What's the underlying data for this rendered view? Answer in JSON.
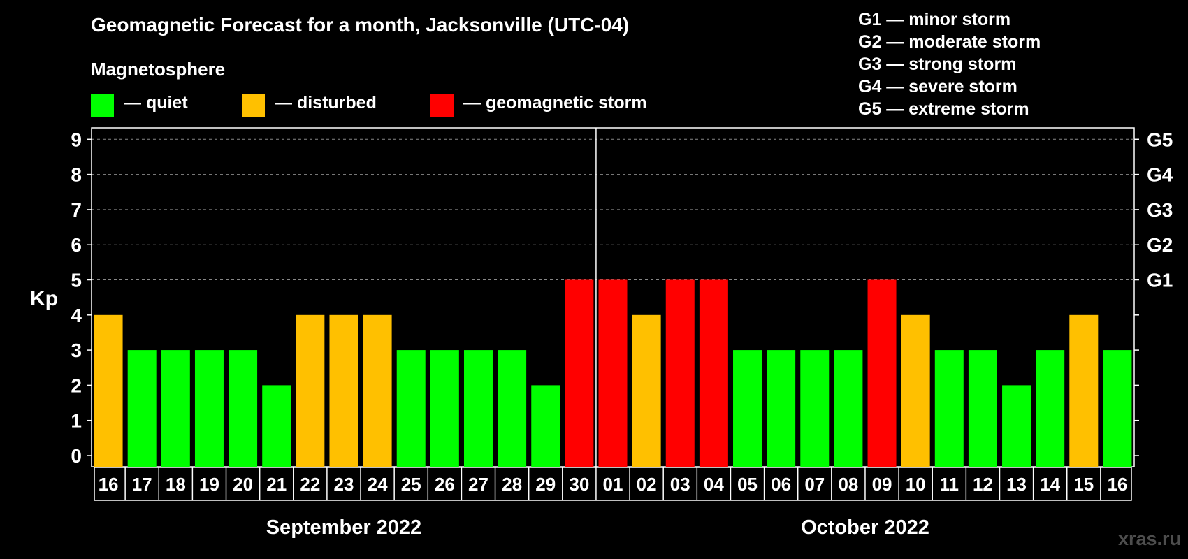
{
  "chart_data": {
    "type": "bar",
    "title": "Geomagnetic Forecast for a month, Jacksonville (UTC-04)",
    "legend_heading": "Magnetosphere",
    "legend": [
      {
        "label": "— quiet",
        "color": "#00ff00"
      },
      {
        "label": "— disturbed",
        "color": "#ffc000"
      },
      {
        "label": "— geomagnetic storm",
        "color": "#ff0000"
      }
    ],
    "storm_scale": [
      "G1 — minor storm",
      "G2 — moderate storm",
      "G3 — strong storm",
      "G4 — severe storm",
      "G5 — extreme storm"
    ],
    "ylabel": "Kp",
    "ylim": [
      0,
      9
    ],
    "yticks": [
      "0",
      "1",
      "2",
      "3",
      "4",
      "5",
      "6",
      "7",
      "8",
      "9"
    ],
    "right_ticks": [
      {
        "kp": 5,
        "label": "G1"
      },
      {
        "kp": 6,
        "label": "G2"
      },
      {
        "kp": 7,
        "label": "G3"
      },
      {
        "kp": 8,
        "label": "G4"
      },
      {
        "kp": 9,
        "label": "G5"
      }
    ],
    "categories": [
      "16",
      "17",
      "18",
      "19",
      "20",
      "21",
      "22",
      "23",
      "24",
      "25",
      "26",
      "27",
      "28",
      "29",
      "30",
      "01",
      "02",
      "03",
      "04",
      "05",
      "06",
      "07",
      "08",
      "09",
      "10",
      "11",
      "12",
      "13",
      "14",
      "15",
      "16"
    ],
    "values": [
      4,
      3,
      3,
      3,
      3,
      2,
      4,
      4,
      4,
      3,
      3,
      3,
      3,
      2,
      5,
      5,
      4,
      5,
      5,
      3,
      3,
      3,
      3,
      5,
      4,
      3,
      3,
      2,
      3,
      4,
      3
    ],
    "months": [
      {
        "label": "September 2022",
        "first_index": 0,
        "last_index": 14
      },
      {
        "label": "October 2022",
        "first_index": 15,
        "last_index": 30
      }
    ],
    "grid": "dashed horizontal at each Kp level from 5 to 9",
    "colors": {
      "quiet": "#00ff00",
      "disturbed": "#ffc000",
      "storm": "#ff0000"
    }
  },
  "watermark": "xras.ru"
}
